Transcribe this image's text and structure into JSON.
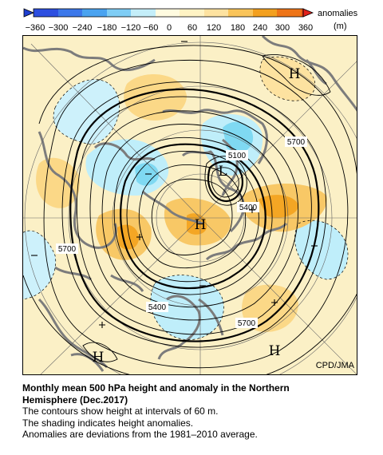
{
  "colorbar": {
    "ticks": [
      "−360",
      "−300",
      "−240",
      "−180",
      "−120",
      "−60",
      "0",
      "60",
      "120",
      "180",
      "240",
      "300",
      "360"
    ],
    "label": "anomalies",
    "unit": "(m)",
    "colors": {
      "neg360": "#1e3fd0",
      "neg300": "#2d63e4",
      "neg240": "#3c8fef",
      "neg180": "#53b9f3",
      "neg120": "#9fe2f6",
      "neg60": "#d8f5fb",
      "zero_pos": "#fff3c4",
      "pos60": "#ffffff",
      "pos120": "#fbd37a",
      "pos180": "#f7b033",
      "pos240": "#f08a1a",
      "pos300": "#ea5a14",
      "pos360": "#e2221c"
    }
  },
  "map": {
    "contour_labels": [
      "5700",
      "5100",
      "5400",
      "5700",
      "5400",
      "5700"
    ],
    "highs": [
      "H",
      "H",
      "H",
      "H"
    ],
    "lows": [
      "L"
    ],
    "colors": {
      "land": "#808080",
      "ocean": "#fbf0c6",
      "negative": "#bfeefa",
      "positive": "#f8c866",
      "strong_negative": "#7fd9f2",
      "strong_positive": "#f4a624"
    }
  },
  "credit": "CPD/JMA",
  "caption": {
    "title_line1": "Monthly mean 500 hPa height and anomaly in the Northern",
    "title_line2": "Hemisphere (Dec.2017)",
    "line1": "The contours show height at intervals of 60 m.",
    "line2": "The shading indicates height anomalies.",
    "line3": "Anomalies are deviations from the 1981–2010 average."
  }
}
